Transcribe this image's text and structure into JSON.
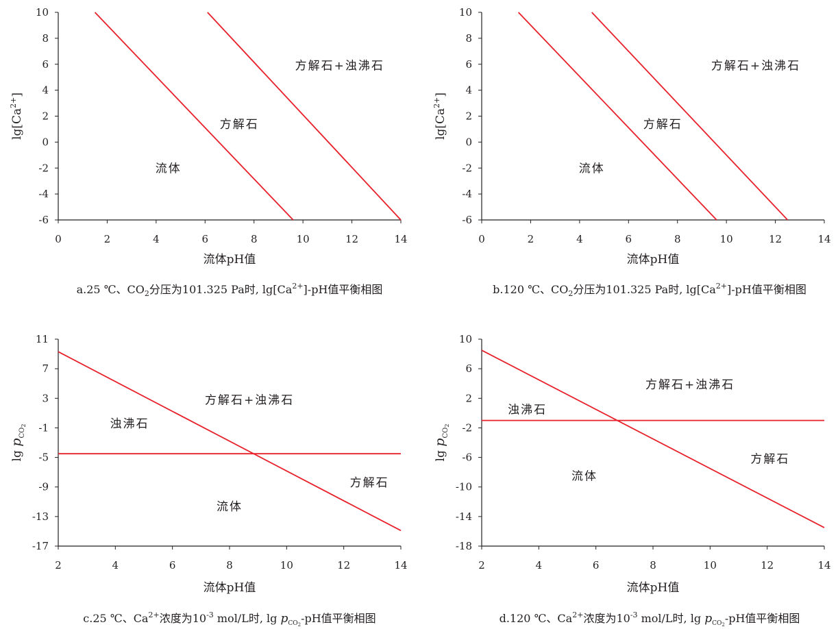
{
  "chart_data": [
    {
      "id": "a",
      "type": "line",
      "x_label": "流体pH值",
      "y_label": "lg[Ca²⁺]",
      "y_label_base": "lg[Ca",
      "y_label_sup": "2+",
      "y_label_tail": "]",
      "x_ticks": [
        0,
        2,
        4,
        6,
        8,
        10,
        12,
        14
      ],
      "y_ticks": [
        -6,
        -4,
        -2,
        0,
        2,
        4,
        6,
        8,
        10
      ],
      "xlim": [
        0,
        14
      ],
      "ylim": [
        -6,
        10
      ],
      "grid": false,
      "line_color": "#e8202a",
      "lines": [
        {
          "points": [
            [
              1.5,
              10
            ],
            [
              9.6,
              -6
            ]
          ]
        },
        {
          "points": [
            [
              6.1,
              10
            ],
            [
              14,
              -6
            ]
          ]
        }
      ],
      "region_labels": [
        {
          "text": "方解石+浊沸石",
          "x": 11.5,
          "y": 5.9
        },
        {
          "text": "方解石",
          "x": 7.4,
          "y": 1.4
        },
        {
          "text": "流体",
          "x": 4.5,
          "y": -2
        }
      ],
      "caption": {
        "before": "a.25 ℃、CO",
        "sub": "2",
        "middle": "分压为101.325 Pa时, lg[Ca",
        "sup": "2+",
        "after": "]-pH值平衡相图"
      }
    },
    {
      "id": "b",
      "type": "line",
      "x_label": "流体pH值",
      "y_label": "lg[Ca²⁺]",
      "y_label_base": "lg[Ca",
      "y_label_sup": "2+",
      "y_label_tail": "]",
      "x_ticks": [
        0,
        2,
        4,
        6,
        8,
        10,
        12,
        14
      ],
      "y_ticks": [
        -6,
        -4,
        -2,
        0,
        2,
        4,
        6,
        8,
        10
      ],
      "xlim": [
        0,
        14
      ],
      "ylim": [
        -6,
        10
      ],
      "grid": false,
      "line_color": "#e8202a",
      "lines": [
        {
          "points": [
            [
              1.5,
              10
            ],
            [
              9.6,
              -6
            ]
          ]
        },
        {
          "points": [
            [
              4.5,
              10
            ],
            [
              12.5,
              -6
            ]
          ]
        }
      ],
      "region_labels": [
        {
          "text": "方解石+浊沸石",
          "x": 11.2,
          "y": 5.9
        },
        {
          "text": "方解石",
          "x": 7.4,
          "y": 1.4
        },
        {
          "text": "流体",
          "x": 4.5,
          "y": -2
        }
      ],
      "caption": {
        "before": "b.120 ℃、CO",
        "sub": "2",
        "middle": "分压为101.325 Pa时, lg[Ca",
        "sup": "2+",
        "after": "]-pH值平衡相图"
      }
    },
    {
      "id": "c",
      "type": "line",
      "x_label": "流体pH值",
      "y_label": "lg p_CO2",
      "y_label_base": "lg ",
      "y_label_italic": "p",
      "y_label_sub": "CO",
      "y_label_sub2": "2",
      "x_ticks": [
        2,
        4,
        6,
        8,
        10,
        12,
        14
      ],
      "y_ticks": [
        -17,
        -13,
        -9,
        -5,
        -1,
        3,
        7,
        11
      ],
      "xlim": [
        2,
        14
      ],
      "ylim": [
        -17,
        11
      ],
      "grid": false,
      "line_color": "#e8202a",
      "lines": [
        {
          "points": [
            [
              2,
              9.3
            ],
            [
              14,
              -14.9
            ]
          ]
        },
        {
          "points": [
            [
              2,
              -4.5
            ],
            [
              14,
              -4.5
            ]
          ]
        }
      ],
      "region_labels": [
        {
          "text": "方解石+浊沸石",
          "x": 8.7,
          "y": 2.8
        },
        {
          "text": "浊沸石",
          "x": 4.5,
          "y": -0.4
        },
        {
          "text": "方解石",
          "x": 12.9,
          "y": -8.4
        },
        {
          "text": "流体",
          "x": 8.0,
          "y": -11.6
        }
      ],
      "caption": {
        "before": "c.25 ℃、Ca",
        "sup": "2+",
        "middle": "浓度为10",
        "sup2": "-3",
        "middle2": " mol/L时, lg ",
        "italic": "p",
        "sub": "CO",
        "sub2": "2",
        "after": "-pH值平衡相图"
      }
    },
    {
      "id": "d",
      "type": "line",
      "x_label": "流体pH值",
      "y_label": "lg p_CO2",
      "y_label_base": "lg ",
      "y_label_italic": "p",
      "y_label_sub": "CO",
      "y_label_sub2": "2",
      "x_ticks": [
        2,
        4,
        6,
        8,
        10,
        12,
        14
      ],
      "y_ticks": [
        -18,
        -14,
        -10,
        -6,
        -2,
        2,
        6,
        10
      ],
      "xlim": [
        2,
        14
      ],
      "ylim": [
        -18,
        10
      ],
      "grid": false,
      "line_color": "#e8202a",
      "lines": [
        {
          "points": [
            [
              2,
              8.5
            ],
            [
              14,
              -15.5
            ]
          ]
        },
        {
          "points": [
            [
              2,
              -1
            ],
            [
              14,
              -1
            ]
          ]
        }
      ],
      "region_labels": [
        {
          "text": "方解石+浊沸石",
          "x": 9.3,
          "y": 3.9
        },
        {
          "text": "浊沸石",
          "x": 3.6,
          "y": 0.5
        },
        {
          "text": "方解石",
          "x": 12.1,
          "y": -6.2
        },
        {
          "text": "流体",
          "x": 5.6,
          "y": -8.5
        }
      ],
      "caption": {
        "before": "d.120 ℃、Ca",
        "sup": "2+",
        "middle": "浓度为10",
        "sup2": "-3",
        "middle2": " mol/L时, lg ",
        "italic": "p",
        "sub": "CO",
        "sub2": "2",
        "after": "-pH值平衡相图"
      }
    }
  ]
}
